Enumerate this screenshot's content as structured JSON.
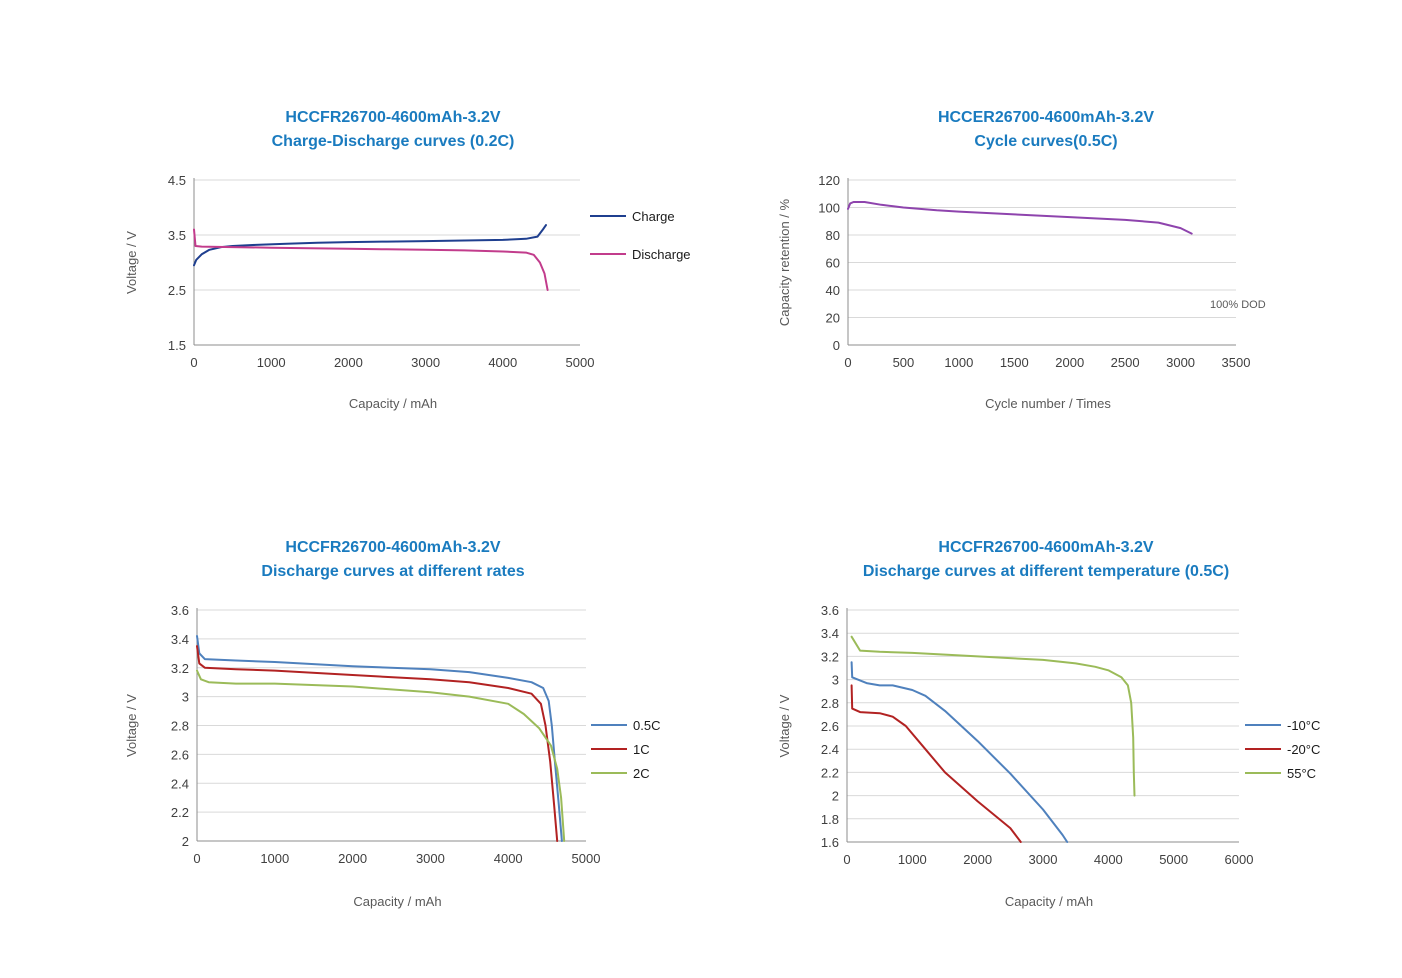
{
  "chart_data": [
    {
      "id": "c1",
      "type": "line",
      "title_lines": [
        "HCCFR26700-4600mAh-3.2V",
        "Charge-Discharge curves (0.2C)"
      ],
      "xlabel": "Capacity / mAh",
      "ylabel": "Voltage / V",
      "xlim": [
        0,
        5000
      ],
      "ylim": [
        1.5,
        4.5
      ],
      "xticks": [
        0,
        1000,
        2000,
        3000,
        4000,
        5000
      ],
      "yticks": [
        1.5,
        2.5,
        3.5,
        4.5
      ],
      "grid": true,
      "legend": "right",
      "series": [
        {
          "name": "Charge",
          "color": "#1f3f8f",
          "points": [
            [
              0,
              2.95
            ],
            [
              30,
              3.05
            ],
            [
              100,
              3.15
            ],
            [
              200,
              3.23
            ],
            [
              350,
              3.28
            ],
            [
              500,
              3.3
            ],
            [
              800,
              3.32
            ],
            [
              1200,
              3.34
            ],
            [
              1600,
              3.36
            ],
            [
              2000,
              3.37
            ],
            [
              2500,
              3.38
            ],
            [
              3000,
              3.39
            ],
            [
              3500,
              3.4
            ],
            [
              4000,
              3.41
            ],
            [
              4300,
              3.43
            ],
            [
              4450,
              3.47
            ],
            [
              4520,
              3.6
            ],
            [
              4560,
              3.68
            ]
          ]
        },
        {
          "name": "Discharge",
          "color": "#c23c8c",
          "points": [
            [
              0,
              3.6
            ],
            [
              20,
              3.3
            ],
            [
              100,
              3.29
            ],
            [
              500,
              3.28
            ],
            [
              1000,
              3.27
            ],
            [
              1500,
              3.26
            ],
            [
              2000,
              3.25
            ],
            [
              2500,
              3.24
            ],
            [
              3000,
              3.23
            ],
            [
              3500,
              3.22
            ],
            [
              4000,
              3.2
            ],
            [
              4300,
              3.18
            ],
            [
              4400,
              3.14
            ],
            [
              4480,
              3.0
            ],
            [
              4540,
              2.8
            ],
            [
              4580,
              2.5
            ]
          ]
        }
      ]
    },
    {
      "id": "c2",
      "type": "line",
      "title_lines": [
        "HCCER26700-4600mAh-3.2V",
        "Cycle curves(0.5C)"
      ],
      "xlabel": "Cycle number / Times",
      "ylabel": "Capacity retention / %",
      "xlim": [
        0,
        3500
      ],
      "ylim": [
        0,
        120
      ],
      "xticks": [
        0,
        500,
        1000,
        1500,
        2000,
        2500,
        3000,
        3500
      ],
      "yticks": [
        0,
        20,
        40,
        60,
        80,
        100,
        120
      ],
      "grid": true,
      "annotation": "100% DOD",
      "series": [
        {
          "color": "#8e44ad",
          "points": [
            [
              0,
              99
            ],
            [
              20,
              103
            ],
            [
              50,
              104
            ],
            [
              150,
              104
            ],
            [
              300,
              102
            ],
            [
              400,
              101
            ],
            [
              500,
              100
            ],
            [
              800,
              98
            ],
            [
              1000,
              97
            ],
            [
              1500,
              95
            ],
            [
              2000,
              93
            ],
            [
              2500,
              91
            ],
            [
              2800,
              89
            ],
            [
              3000,
              85
            ],
            [
              3100,
              81
            ]
          ]
        }
      ]
    },
    {
      "id": "c3",
      "type": "line",
      "title_lines": [
        "HCCFR26700-4600mAh-3.2V",
        "Discharge curves at different rates"
      ],
      "xlabel": "Capacity / mAh",
      "ylabel": "Voltage / V",
      "xlim": [
        0,
        5000
      ],
      "ylim": [
        2,
        3.6
      ],
      "xticks": [
        0,
        1000,
        2000,
        3000,
        4000,
        5000
      ],
      "yticks": [
        2,
        2.2,
        2.4,
        2.6,
        2.8,
        3,
        3.2,
        3.4,
        3.6
      ],
      "grid": true,
      "legend": "right",
      "series": [
        {
          "name": "0.5C",
          "color": "#4f81bd",
          "points": [
            [
              0,
              3.42
            ],
            [
              30,
              3.3
            ],
            [
              100,
              3.26
            ],
            [
              500,
              3.25
            ],
            [
              1000,
              3.24
            ],
            [
              2000,
              3.21
            ],
            [
              3000,
              3.19
            ],
            [
              3500,
              3.17
            ],
            [
              4000,
              3.13
            ],
            [
              4300,
              3.1
            ],
            [
              4450,
              3.06
            ],
            [
              4520,
              2.97
            ],
            [
              4560,
              2.8
            ],
            [
              4600,
              2.55
            ],
            [
              4650,
              2.25
            ],
            [
              4690,
              2.0
            ]
          ]
        },
        {
          "name": "1C",
          "color": "#b22222",
          "points": [
            [
              0,
              3.35
            ],
            [
              30,
              3.23
            ],
            [
              100,
              3.2
            ],
            [
              500,
              3.19
            ],
            [
              1000,
              3.18
            ],
            [
              2000,
              3.15
            ],
            [
              3000,
              3.12
            ],
            [
              3500,
              3.1
            ],
            [
              4000,
              3.06
            ],
            [
              4300,
              3.02
            ],
            [
              4420,
              2.95
            ],
            [
              4480,
              2.8
            ],
            [
              4540,
              2.55
            ],
            [
              4590,
              2.25
            ],
            [
              4630,
              2.0
            ]
          ]
        },
        {
          "name": "2C",
          "color": "#9bbb59",
          "points": [
            [
              0,
              3.18
            ],
            [
              50,
              3.12
            ],
            [
              150,
              3.1
            ],
            [
              500,
              3.09
            ],
            [
              1000,
              3.09
            ],
            [
              2000,
              3.07
            ],
            [
              3000,
              3.03
            ],
            [
              3500,
              3.0
            ],
            [
              4000,
              2.95
            ],
            [
              4200,
              2.88
            ],
            [
              4400,
              2.78
            ],
            [
              4550,
              2.66
            ],
            [
              4630,
              2.5
            ],
            [
              4680,
              2.3
            ],
            [
              4720,
              2.0
            ]
          ]
        }
      ]
    },
    {
      "id": "c4",
      "type": "line",
      "title_lines": [
        "HCCFR26700-4600mAh-3.2V",
        "Discharge curves at different temperature (0.5C)"
      ],
      "xlabel": "Capacity / mAh",
      "ylabel": "Voltage / V",
      "xlim": [
        0,
        6000
      ],
      "ylim": [
        1.6,
        3.6
      ],
      "xticks": [
        0,
        1000,
        2000,
        3000,
        4000,
        5000,
        6000
      ],
      "yticks": [
        1.6,
        1.8,
        2,
        2.2,
        2.4,
        2.6,
        2.8,
        3,
        3.2,
        3.4,
        3.6
      ],
      "grid": true,
      "legend": "right",
      "series": [
        {
          "name": "-10°C",
          "color": "#4f81bd",
          "points": [
            [
              70,
              3.15
            ],
            [
              80,
              3.02
            ],
            [
              300,
              2.97
            ],
            [
              500,
              2.95
            ],
            [
              700,
              2.95
            ],
            [
              1000,
              2.91
            ],
            [
              1200,
              2.86
            ],
            [
              1500,
              2.73
            ],
            [
              2000,
              2.47
            ],
            [
              2500,
              2.19
            ],
            [
              3000,
              1.88
            ],
            [
              3300,
              1.66
            ],
            [
              3370,
              1.6
            ]
          ]
        },
        {
          "name": "-20°C",
          "color": "#b22222",
          "points": [
            [
              70,
              2.95
            ],
            [
              80,
              2.75
            ],
            [
              200,
              2.72
            ],
            [
              500,
              2.71
            ],
            [
              700,
              2.68
            ],
            [
              900,
              2.6
            ],
            [
              1200,
              2.4
            ],
            [
              1500,
              2.2
            ],
            [
              2000,
              1.95
            ],
            [
              2500,
              1.72
            ],
            [
              2660,
              1.6
            ]
          ]
        },
        {
          "name": "55°C",
          "color": "#9bbb59",
          "points": [
            [
              70,
              3.37
            ],
            [
              200,
              3.25
            ],
            [
              500,
              3.24
            ],
            [
              1000,
              3.23
            ],
            [
              2000,
              3.2
            ],
            [
              3000,
              3.17
            ],
            [
              3500,
              3.14
            ],
            [
              3800,
              3.11
            ],
            [
              4000,
              3.08
            ],
            [
              4200,
              3.02
            ],
            [
              4300,
              2.95
            ],
            [
              4350,
              2.8
            ],
            [
              4380,
              2.5
            ],
            [
              4390,
              2.2
            ],
            [
              4400,
              2.0
            ]
          ]
        }
      ]
    }
  ]
}
